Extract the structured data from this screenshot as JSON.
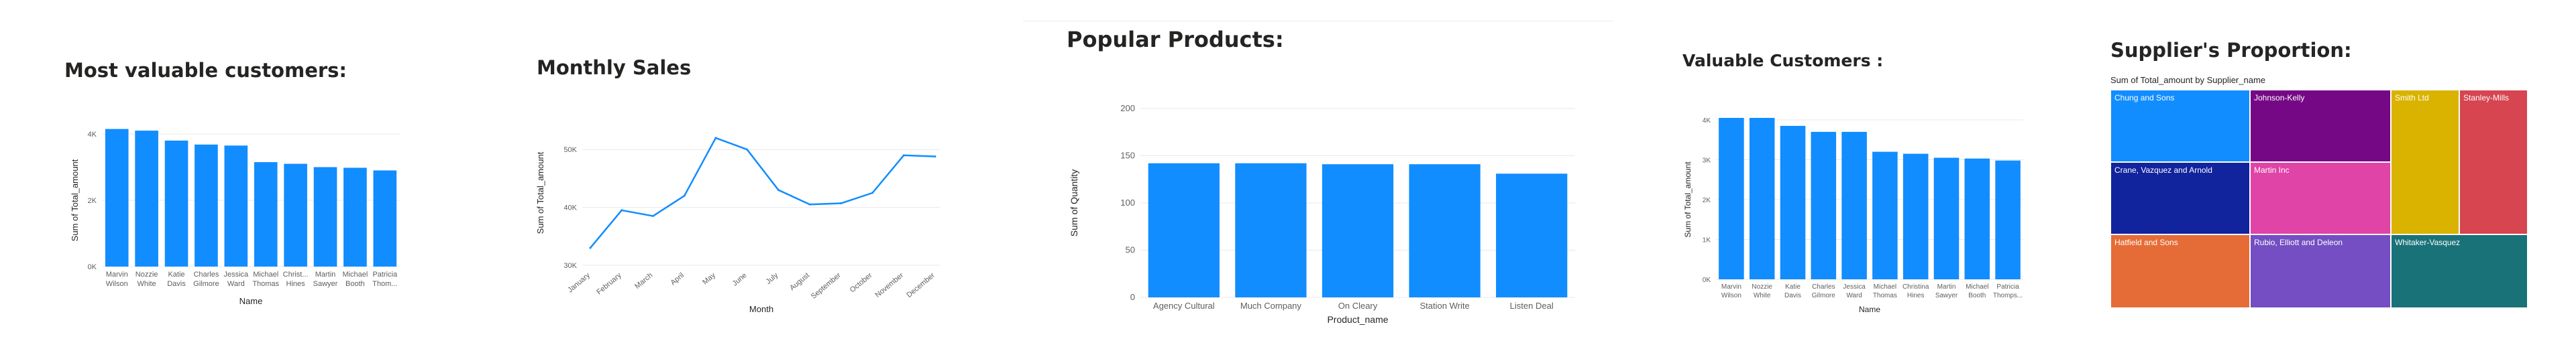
{
  "colors": {
    "bar": "#118dff",
    "line": "#118dff",
    "axis_text": "#605e5c",
    "title": "#252423",
    "grid": "#e8e8e8"
  },
  "chart_data": [
    {
      "id": "c1",
      "type": "bar",
      "title": "Most valuable customers:",
      "xlabel": "Name",
      "ylabel": "Sum of Total_amount",
      "categories": [
        [
          "Marvin",
          "Wilson"
        ],
        [
          "Nozzie",
          "White"
        ],
        [
          "Katie",
          "Davis"
        ],
        [
          "Charles",
          "Gilmore"
        ],
        [
          "Jessica",
          "Ward"
        ],
        [
          "Michael",
          "Thomas"
        ],
        [
          "Christ...",
          "Hines"
        ],
        [
          "Martin",
          "Sawyer"
        ],
        [
          "Michael",
          "Booth"
        ],
        [
          "Patricia",
          "Thom..."
        ]
      ],
      "values": [
        4150,
        4100,
        3800,
        3680,
        3650,
        3150,
        3100,
        3000,
        2980,
        2900
      ],
      "ylim": [
        0,
        4000
      ],
      "yticks": [
        "0K",
        "2K",
        "4K"
      ],
      "ytick_values": [
        0,
        2000,
        4000
      ],
      "grid": true
    },
    {
      "id": "c2",
      "type": "line",
      "title": "Monthly Sales",
      "xlabel": "Month",
      "ylabel": "Sum of Total_amount",
      "categories": [
        "January",
        "February",
        "March",
        "April",
        "May",
        "June",
        "July",
        "August",
        "September",
        "October",
        "November",
        "December"
      ],
      "values": [
        33000,
        39500,
        38500,
        42000,
        52000,
        50000,
        43000,
        40500,
        40700,
        42500,
        49000,
        48800
      ],
      "ylim": [
        30000,
        55000
      ],
      "yticks": [
        "30K",
        "40K",
        "50K"
      ],
      "ytick_values": [
        30000,
        40000,
        50000
      ],
      "grid": true
    },
    {
      "id": "c3",
      "type": "bar",
      "title": "Popular Products:",
      "xlabel": "Product_name",
      "ylabel": "Sum of Quantity",
      "categories": [
        [
          "Agency Cultural"
        ],
        [
          "Much Company"
        ],
        [
          "On Cleary"
        ],
        [
          "Station Write"
        ],
        [
          "Listen Deal"
        ]
      ],
      "values": [
        142,
        142,
        141,
        141,
        131
      ],
      "ylim": [
        0,
        200
      ],
      "yticks": [
        "0",
        "50",
        "100",
        "150",
        "200"
      ],
      "ytick_values": [
        0,
        50,
        100,
        150,
        200
      ],
      "grid": true
    },
    {
      "id": "c4",
      "type": "bar",
      "title": "Valuable Customers :",
      "xlabel": "Name",
      "ylabel": "Sum of Total_amount",
      "categories": [
        [
          "Marvin",
          "Wilson"
        ],
        [
          "Nozzie",
          "White"
        ],
        [
          "Katie",
          "Davis"
        ],
        [
          "Charles",
          "Gilmore"
        ],
        [
          "Jessica",
          "Ward"
        ],
        [
          "Michael",
          "Thomas"
        ],
        [
          "Christina",
          "Hines"
        ],
        [
          "Martin",
          "Sawyer"
        ],
        [
          "Michael",
          "Booth"
        ],
        [
          "Patricia",
          "Thomps..."
        ]
      ],
      "values": [
        4050,
        4050,
        3850,
        3700,
        3700,
        3200,
        3150,
        3050,
        3030,
        2980
      ],
      "ylim": [
        0,
        4000
      ],
      "yticks": [
        "0K",
        "1K",
        "2K",
        "3K",
        "4K"
      ],
      "ytick_values": [
        0,
        1000,
        2000,
        3000,
        4000
      ],
      "grid": true
    },
    {
      "id": "c5",
      "type": "treemap",
      "title": "Supplier's Proportion:",
      "subtitle": "Sum of Total_amount by Supplier_name",
      "cells": [
        {
          "name": "Chung and Sons",
          "color": "#118dff"
        },
        {
          "name": "Johnson-Kelly",
          "color": "#750985"
        },
        {
          "name": "Smith Ltd",
          "color": "#d9b300"
        },
        {
          "name": "Stanley-Mills",
          "color": "#d64550"
        },
        {
          "name": "Crane, Vazquez and Arnold",
          "color": "#12239e"
        },
        {
          "name": "Martin Inc",
          "color": "#e044a7"
        },
        {
          "name": "Hatfield and Sons",
          "color": "#e66c37"
        },
        {
          "name": "Rubio, Elliott and Deleon",
          "color": "#744ec2"
        },
        {
          "name": "Whitaker-Vasquez",
          "color": "#197278"
        }
      ]
    }
  ]
}
